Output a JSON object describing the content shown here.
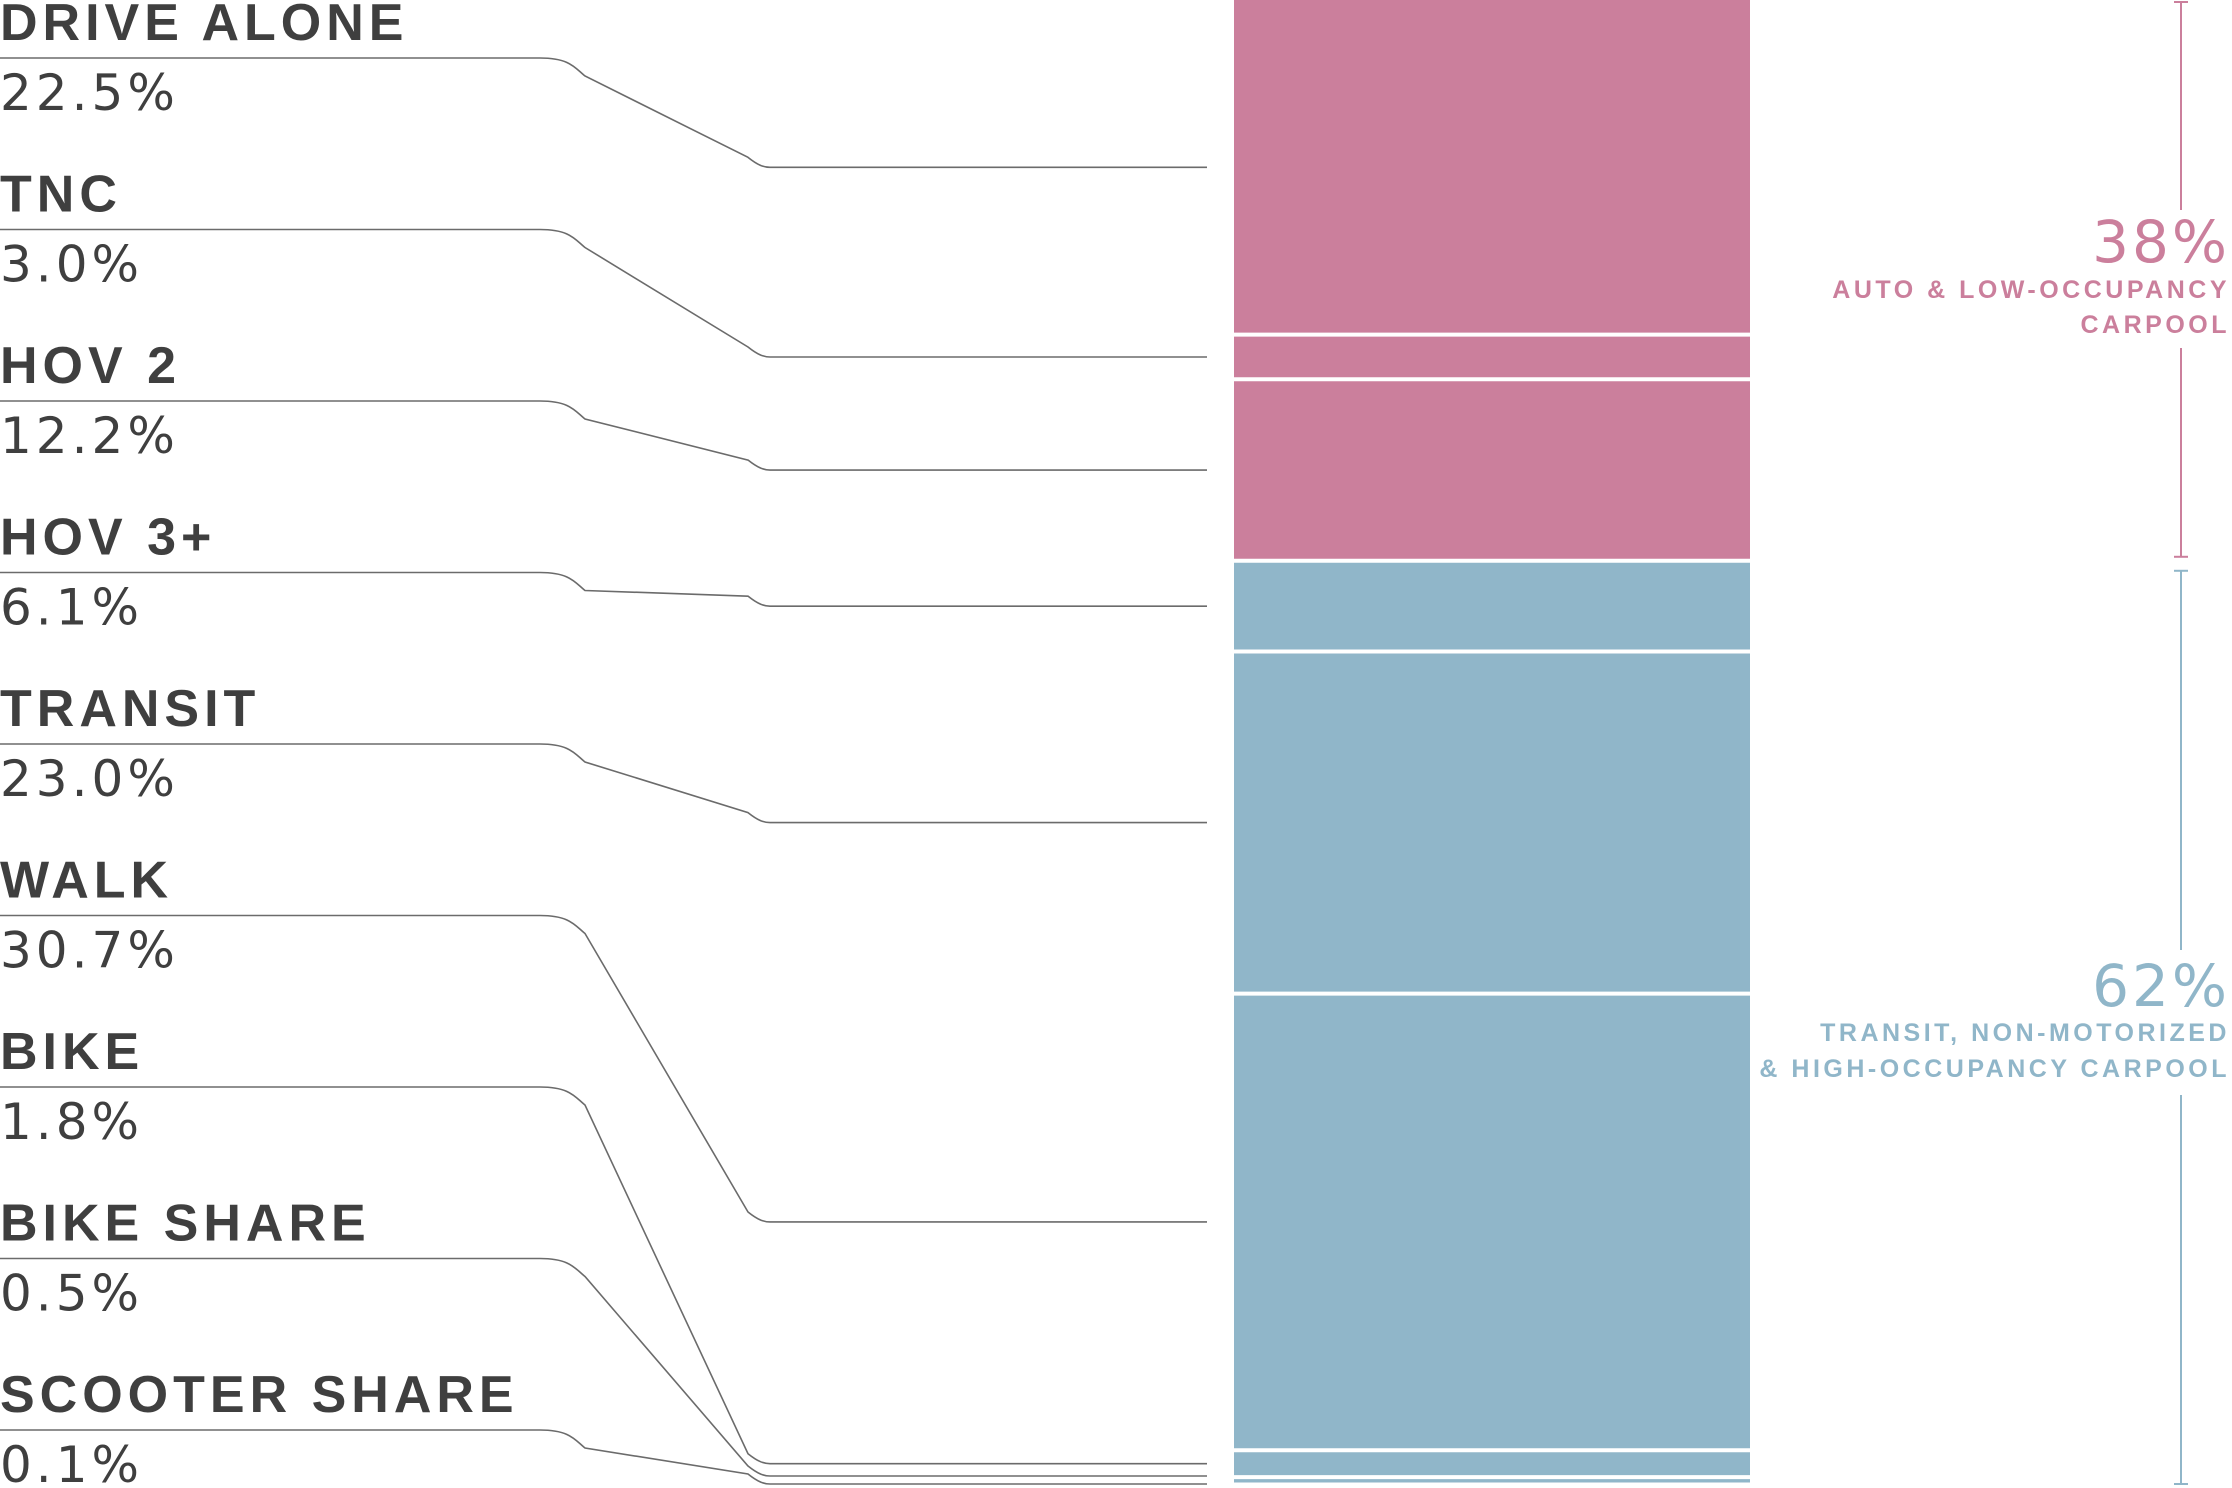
{
  "chart_data": {
    "type": "bar",
    "stacked": true,
    "orientation": "vertical",
    "categories": [
      "DRIVE ALONE",
      "TNC",
      "HOV 2",
      "HOV 3+",
      "TRANSIT",
      "WALK",
      "BIKE",
      "BIKE SHARE",
      "SCOOTER SHARE"
    ],
    "values": [
      22.5,
      3.0,
      12.2,
      6.1,
      23.0,
      30.7,
      1.8,
      0.5,
      0.1
    ],
    "value_labels": [
      "22.5%",
      "3.0%",
      "12.2%",
      "6.1%",
      "23.0%",
      "30.7%",
      "1.8%",
      "0.5%",
      "0.1%"
    ],
    "groups": [
      {
        "percent": "38%",
        "label_lines": [
          "AUTO & LOW-OCCUPANCY",
          "CARPOOL"
        ],
        "members": [
          "DRIVE ALONE",
          "TNC",
          "HOV 2"
        ],
        "color": "#cb7f9c"
      },
      {
        "percent": "62%",
        "label_lines": [
          "TRANSIT, NON-MOTORIZED",
          "& HIGH-OCCUPANCY CARPOOL"
        ],
        "members": [
          "HOV 3+",
          "TRANSIT",
          "WALK",
          "BIKE",
          "BIKE SHARE",
          "SCOOTER SHARE"
        ],
        "color": "#90b6c9"
      }
    ],
    "text_color": "#3f3f3f"
  }
}
